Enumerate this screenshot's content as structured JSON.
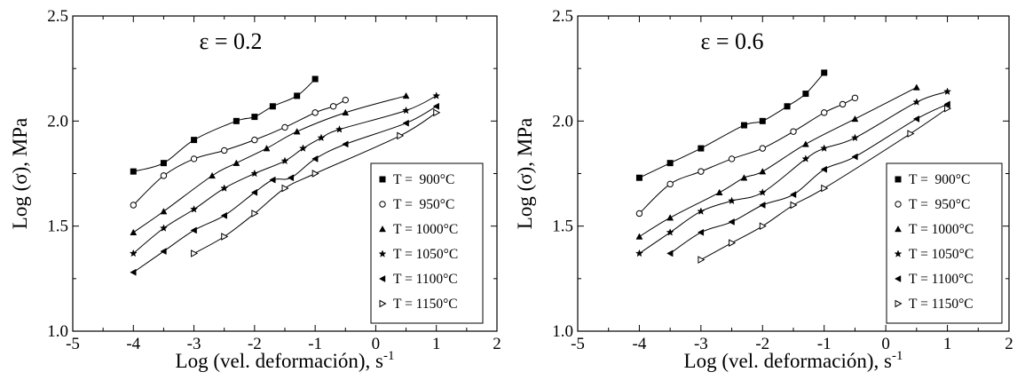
{
  "chart_data": [
    {
      "type": "scatter",
      "title": "",
      "annotation": "ε = 0.2",
      "xlabel": "Log (vel. deformación), s",
      "xlabel_sup": "-1",
      "ylabel": "Log (σ), MPa",
      "xlim": [
        -5,
        2
      ],
      "ylim": [
        1.0,
        2.5
      ],
      "xticks": [
        "-5",
        "-4",
        "-3",
        "-2",
        "-1",
        "0",
        "1",
        "2"
      ],
      "yticks": [
        "1.0",
        "1.5",
        "2.0",
        "2.5"
      ],
      "legend_position": "bottom-right",
      "series": [
        {
          "name": "T =  900°C",
          "marker": "square",
          "x": [
            -4,
            -3.5,
            -3,
            -2.3,
            -2,
            -1.7,
            -1.3,
            -1
          ],
          "y": [
            1.76,
            1.8,
            1.91,
            2.0,
            2.02,
            2.07,
            2.12,
            2.2
          ]
        },
        {
          "name": "T =  950°C",
          "marker": "circle-open",
          "x": [
            -4,
            -3.5,
            -3,
            -2.5,
            -2,
            -1.5,
            -1,
            -0.7,
            -0.5
          ],
          "y": [
            1.6,
            1.74,
            1.82,
            1.86,
            1.91,
            1.97,
            2.04,
            2.07,
            2.1
          ]
        },
        {
          "name": "T = 1000°C",
          "marker": "triangle-up",
          "x": [
            -4,
            -3.5,
            -2.7,
            -2.3,
            -1.8,
            -1.3,
            -0.5,
            0.5
          ],
          "y": [
            1.47,
            1.57,
            1.74,
            1.8,
            1.87,
            1.95,
            2.04,
            2.12
          ]
        },
        {
          "name": "T = 1050°C",
          "marker": "star",
          "x": [
            -4,
            -3.5,
            -3,
            -2.5,
            -2,
            -1.5,
            -1.2,
            -0.9,
            -0.6,
            0.5,
            1
          ],
          "y": [
            1.37,
            1.49,
            1.58,
            1.68,
            1.75,
            1.81,
            1.87,
            1.92,
            1.96,
            2.05,
            2.12
          ]
        },
        {
          "name": "T = 1100°C",
          "marker": "triangle-left",
          "x": [
            -4,
            -3.5,
            -3,
            -2.5,
            -2,
            -1.7,
            -1.4,
            -1,
            -0.5,
            0.5,
            1
          ],
          "y": [
            1.28,
            1.38,
            1.48,
            1.55,
            1.66,
            1.72,
            1.73,
            1.82,
            1.89,
            1.99,
            2.07
          ]
        },
        {
          "name": "T = 1150°C",
          "marker": "triangle-right-open",
          "x": [
            -3,
            -2.5,
            -2,
            -1.5,
            -1,
            0.4,
            1
          ],
          "y": [
            1.37,
            1.45,
            1.56,
            1.68,
            1.75,
            1.93,
            2.04
          ]
        }
      ]
    },
    {
      "type": "scatter",
      "title": "",
      "annotation": "ε = 0.6",
      "xlabel": "Log (vel. deformación), s",
      "xlabel_sup": "-1",
      "ylabel": "Log (σ), MPa",
      "xlim": [
        -5,
        2
      ],
      "ylim": [
        1.0,
        2.5
      ],
      "xticks": [
        "-5",
        "-4",
        "-3",
        "-2",
        "-1",
        "0",
        "1",
        "2"
      ],
      "yticks": [
        "1.0",
        "1.5",
        "2.0",
        "2.5"
      ],
      "legend_position": "bottom-right",
      "series": [
        {
          "name": "T =  900°C",
          "marker": "square",
          "x": [
            -4,
            -3.5,
            -3,
            -2.3,
            -2,
            -1.6,
            -1.3,
            -1
          ],
          "y": [
            1.73,
            1.8,
            1.87,
            1.98,
            2.0,
            2.07,
            2.13,
            2.23
          ]
        },
        {
          "name": "T =  950°C",
          "marker": "circle-open",
          "x": [
            -4,
            -3.5,
            -3,
            -2.5,
            -2,
            -1.5,
            -1,
            -0.7,
            -0.5
          ],
          "y": [
            1.56,
            1.7,
            1.76,
            1.82,
            1.87,
            1.95,
            2.04,
            2.08,
            2.11
          ]
        },
        {
          "name": "T = 1000°C",
          "marker": "triangle-up",
          "x": [
            -4,
            -3.5,
            -2.7,
            -2.3,
            -2,
            -1.3,
            -0.5,
            0.5
          ],
          "y": [
            1.45,
            1.54,
            1.66,
            1.73,
            1.76,
            1.89,
            2.01,
            2.16
          ]
        },
        {
          "name": "T = 1050°C",
          "marker": "star",
          "x": [
            -4,
            -3.5,
            -3,
            -2.5,
            -2,
            -1.3,
            -1,
            -0.5,
            0.5,
            1
          ],
          "y": [
            1.37,
            1.47,
            1.57,
            1.62,
            1.66,
            1.82,
            1.87,
            1.92,
            2.09,
            2.14
          ]
        },
        {
          "name": "T = 1100°C",
          "marker": "triangle-left",
          "x": [
            -3.5,
            -3,
            -2.5,
            -2,
            -1.5,
            -1,
            -0.5,
            0.5,
            1
          ],
          "y": [
            1.37,
            1.47,
            1.52,
            1.6,
            1.65,
            1.77,
            1.83,
            2.01,
            2.08
          ]
        },
        {
          "name": "T = 1150°C",
          "marker": "triangle-right-open",
          "x": [
            -3,
            -2.5,
            -2,
            -1.5,
            -1,
            0.4,
            1
          ],
          "y": [
            1.34,
            1.42,
            1.5,
            1.6,
            1.68,
            1.94,
            2.06
          ]
        }
      ]
    }
  ]
}
